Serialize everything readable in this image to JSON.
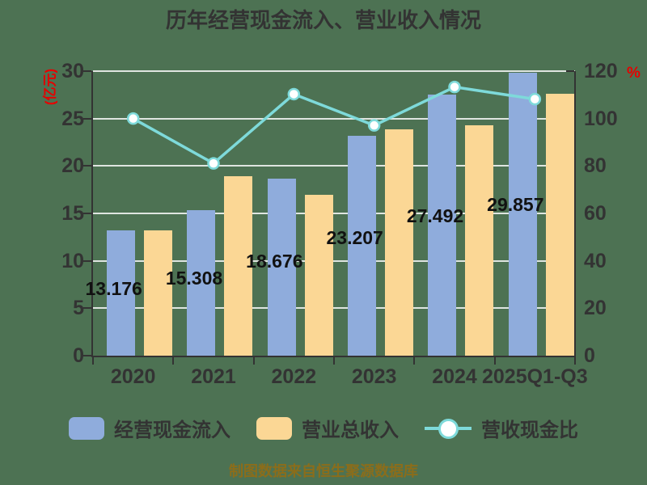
{
  "title": "历年经营现金流入、营业收入情况",
  "footer": "制图数据来自恒生聚源数据库",
  "left_axis": {
    "unit": "(亿元)",
    "ticks": [
      0,
      5,
      10,
      15,
      20,
      25,
      30
    ],
    "max": 30
  },
  "right_axis": {
    "unit": "%",
    "ticks": [
      0,
      20,
      40,
      60,
      80,
      100,
      120
    ],
    "max": 120
  },
  "chart_data": {
    "type": "bar+line combo",
    "categories": [
      "2020",
      "2021",
      "2022",
      "2023",
      "2024",
      "2025Q1-Q3"
    ],
    "series": [
      {
        "name": "经营现金流入",
        "type": "bar",
        "axis": "left",
        "color": "#8facdc",
        "values": [
          13.176,
          15.308,
          18.676,
          23.207,
          27.492,
          29.857
        ],
        "labels": [
          "13.176",
          "15.308",
          "18.676",
          "23.207",
          "27.492",
          "29.857"
        ]
      },
      {
        "name": "营业总收入",
        "type": "bar",
        "axis": "left",
        "color": "#fbd795",
        "values": [
          13.17,
          18.88,
          16.94,
          23.89,
          24.27,
          27.59
        ]
      },
      {
        "name": "营收现金比",
        "type": "line",
        "axis": "right",
        "color": "#7edada",
        "marker": "circle-white",
        "values": [
          100.0,
          81.1,
          110.3,
          97.1,
          113.3,
          108.2
        ]
      }
    ],
    "ylim_left": [
      0,
      30
    ],
    "ylim_right": [
      0,
      120
    ],
    "grid": true,
    "legend_position": "bottom"
  },
  "legend": [
    {
      "label": "经营现金流入",
      "swatch_color": "#8facdc",
      "type": "bar"
    },
    {
      "label": "营业总收入",
      "swatch_color": "#fbd795",
      "type": "bar"
    },
    {
      "label": "营收现金比",
      "swatch_color": "#7edada",
      "type": "line"
    }
  ],
  "colors": {
    "background": "#4d7253",
    "bar_blue": "#8facdc",
    "bar_orange": "#fbd795",
    "line_teal": "#7edada",
    "axis_text": "#333333",
    "data_label": "#111111",
    "unit_red": "#e60000",
    "footer_gold": "#8b6d1b",
    "gridline": "#ffffff"
  }
}
